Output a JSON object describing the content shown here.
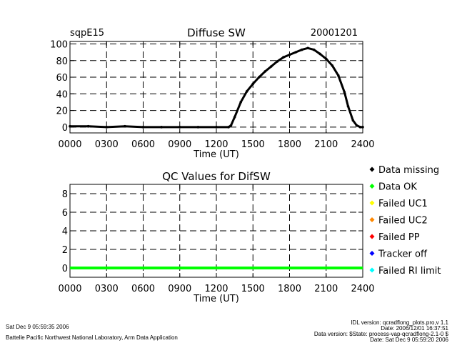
{
  "top": {
    "site": "sqpE15",
    "title": "Diffuse SW",
    "date": "20001201"
  },
  "chart_data": [
    {
      "type": "line",
      "title": "Diffuse SW",
      "xlabel": "Time (UT)",
      "ylabel": "",
      "xlim": [
        0,
        2400
      ],
      "ylim": [
        -7,
        103
      ],
      "xticks": [
        0,
        300,
        600,
        900,
        1200,
        1500,
        1800,
        2100,
        2400
      ],
      "xtick_labels": [
        "0000",
        "0300",
        "0600",
        "0900",
        "1200",
        "1500",
        "1800",
        "2100",
        "2400"
      ],
      "yticks": [
        0,
        20,
        40,
        60,
        80,
        100
      ],
      "ytick_labels": [
        "0",
        "20",
        "40",
        "60",
        "80",
        "100"
      ],
      "grid": true,
      "series": [
        {
          "name": "Diffuse SW",
          "color": "#000000",
          "x": [
            0,
            150,
            300,
            450,
            600,
            750,
            900,
            1050,
            1200,
            1300,
            1320,
            1350,
            1400,
            1450,
            1500,
            1550,
            1600,
            1650,
            1700,
            1750,
            1800,
            1850,
            1900,
            1950,
            2000,
            2050,
            2100,
            2150,
            2200,
            2250,
            2280,
            2320,
            2350,
            2380,
            2400
          ],
          "y": [
            1,
            1,
            0,
            1,
            0,
            0,
            0,
            0,
            0,
            0,
            2,
            12,
            30,
            43,
            52,
            60,
            67,
            73,
            79,
            84,
            87,
            90,
            93,
            95,
            93,
            88,
            82,
            74,
            62,
            42,
            25,
            8,
            2,
            0,
            0
          ]
        }
      ]
    },
    {
      "type": "line",
      "title": "QC Values for DifSW",
      "xlabel": "Time (UT)",
      "ylabel": "",
      "xlim": [
        0,
        2400
      ],
      "ylim": [
        -1,
        9
      ],
      "xticks": [
        0,
        300,
        600,
        900,
        1200,
        1500,
        1800,
        2100,
        2400
      ],
      "xtick_labels": [
        "0000",
        "0300",
        "0600",
        "0900",
        "1200",
        "1500",
        "1800",
        "2100",
        "2400"
      ],
      "yticks": [
        0,
        2,
        4,
        6,
        8
      ],
      "ytick_labels": [
        "0",
        "2",
        "4",
        "6",
        "8"
      ],
      "grid": true,
      "legend_position": "right",
      "series": [
        {
          "name": "QC value",
          "color": "#00ff00",
          "x": [
            0,
            2400
          ],
          "y": [
            0,
            0
          ]
        }
      ]
    }
  ],
  "legend": [
    {
      "label": "Data missing",
      "color": "#000000"
    },
    {
      "label": "Data OK",
      "color": "#00ff00"
    },
    {
      "label": "Failed UC1",
      "color": "#ffff00"
    },
    {
      "label": "Failed UC2",
      "color": "#ff8800"
    },
    {
      "label": "Failed PP",
      "color": "#ff0000"
    },
    {
      "label": "Tracker off",
      "color": "#0000ff"
    },
    {
      "label": "Failed RI limit",
      "color": "#00ffff"
    }
  ],
  "footer": {
    "run_date": "Sat Dec  9 05:59:35 2006",
    "lab": "Battelle Pacific Northwest National Laboratory, Arm Data Application",
    "idl_version": "IDL version: qcradflong_plots.pro,v 1.1",
    "idl_date": "Date: 2006/12/01 16:37:51",
    "data_version": "Data version: $State: process-vap-qcradflong-2.1-0 $",
    "data_date": "Date: Sat Dec  9 05:59:20 2006"
  }
}
